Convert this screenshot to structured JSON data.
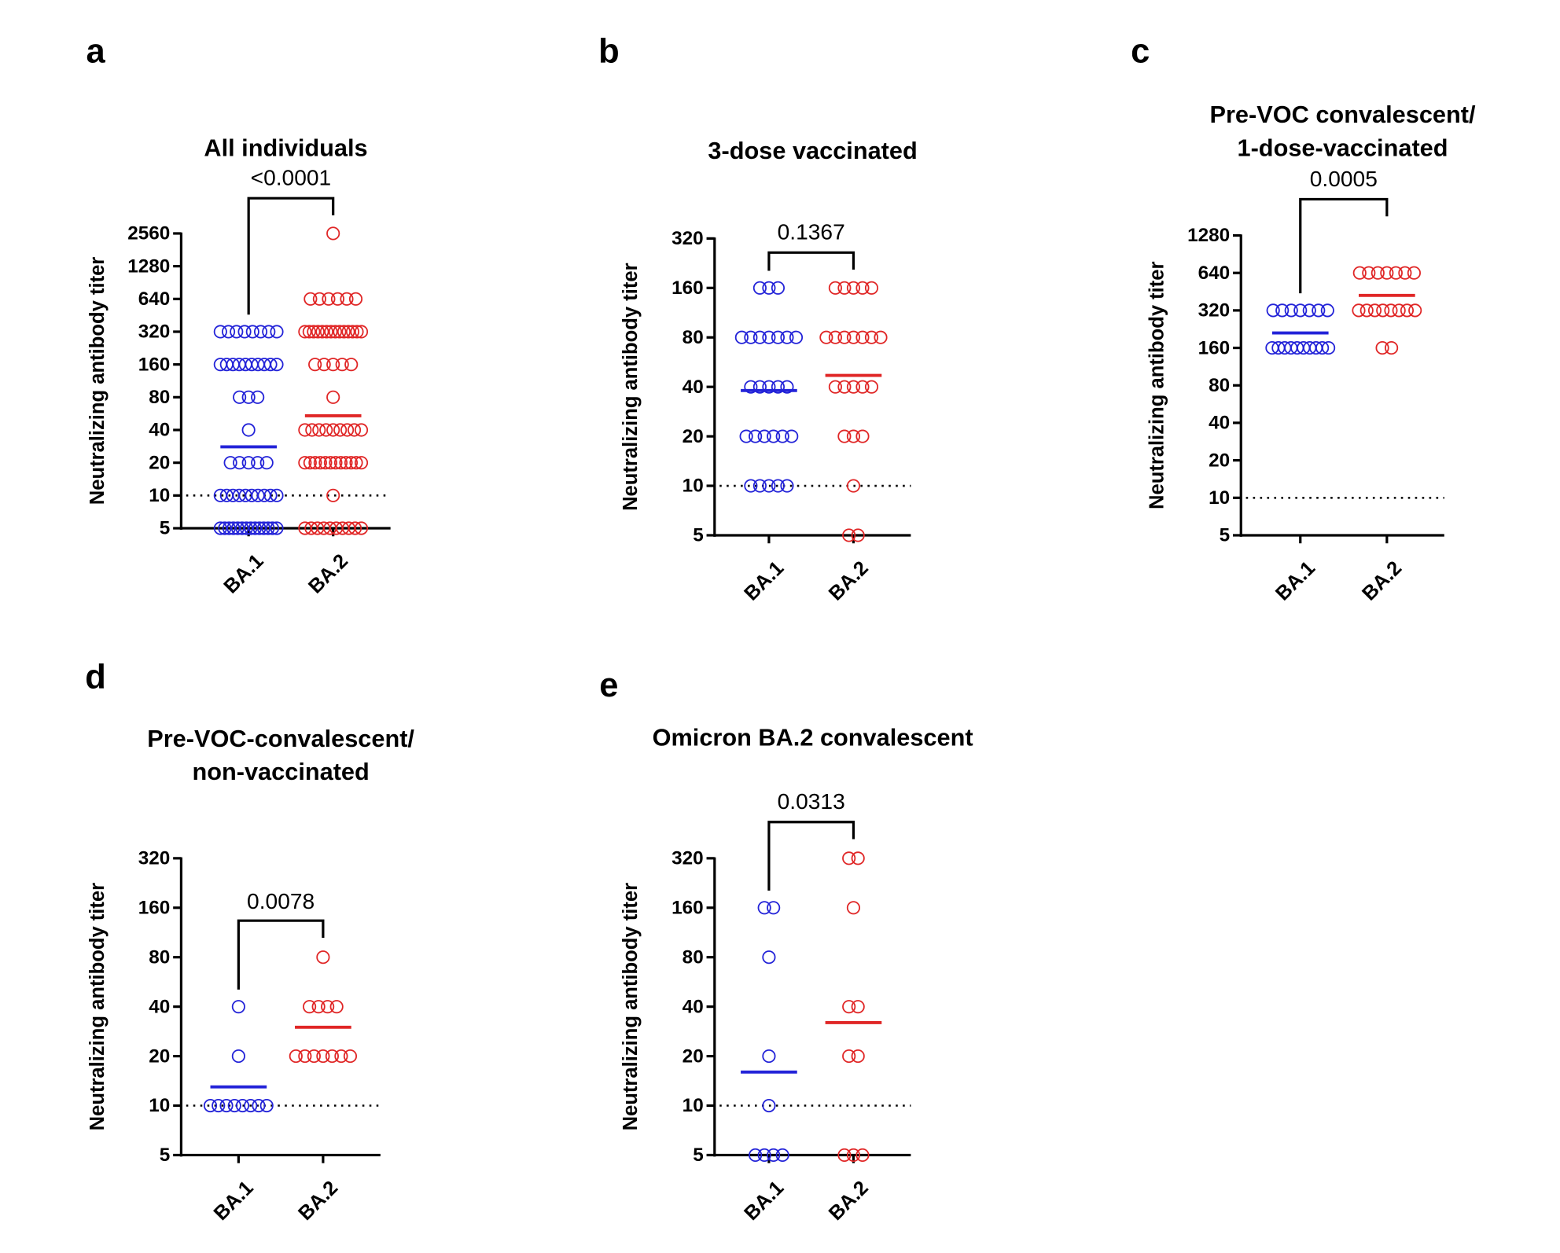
{
  "chart_data": [
    {
      "type": "strip",
      "letter": "a",
      "title": [
        "All individuals"
      ],
      "annotation": "<0.0001",
      "ylabel": "Neutralizing antibody titer",
      "categories": [
        "BA.1",
        "BA.2"
      ],
      "log_scale": true,
      "ylim": [
        5,
        2560
      ],
      "yticks": [
        5,
        10,
        20,
        40,
        80,
        160,
        320,
        640,
        1280,
        2560
      ],
      "reference_line": 10,
      "groups": [
        {
          "color": "#2323d8",
          "mean": 28,
          "values": [
            320,
            320,
            320,
            320,
            320,
            320,
            320,
            320,
            160,
            160,
            160,
            160,
            160,
            160,
            160,
            160,
            160,
            160,
            80,
            80,
            80,
            40,
            20,
            20,
            20,
            20,
            20,
            10,
            10,
            10,
            10,
            10,
            10,
            10,
            10,
            10,
            10,
            5,
            5,
            5,
            5,
            5,
            5,
            5,
            5,
            5,
            5,
            5,
            5,
            5,
            5
          ]
        },
        {
          "color": "#e02626",
          "mean": 54,
          "values": [
            2560,
            640,
            640,
            640,
            640,
            640,
            640,
            320,
            320,
            320,
            320,
            320,
            320,
            320,
            320,
            320,
            320,
            320,
            320,
            320,
            320,
            160,
            160,
            160,
            160,
            160,
            80,
            40,
            40,
            40,
            40,
            40,
            40,
            40,
            40,
            40,
            20,
            20,
            20,
            20,
            20,
            20,
            20,
            20,
            20,
            20,
            20,
            20,
            10,
            5,
            5,
            5,
            5,
            5,
            5,
            5,
            5,
            5,
            5
          ]
        }
      ]
    },
    {
      "type": "strip",
      "letter": "b",
      "title": [
        "3-dose vaccinated"
      ],
      "annotation": "0.1367",
      "ylabel": "Neutralizing antibody titer",
      "categories": [
        "BA.1",
        "BA.2"
      ],
      "log_scale": true,
      "ylim": [
        5,
        320
      ],
      "yticks": [
        5,
        10,
        20,
        40,
        80,
        160,
        320
      ],
      "reference_line": 10,
      "groups": [
        {
          "color": "#2323d8",
          "mean": 38,
          "values": [
            160,
            160,
            160,
            80,
            80,
            80,
            80,
            80,
            80,
            80,
            40,
            40,
            40,
            40,
            40,
            20,
            20,
            20,
            20,
            20,
            20,
            10,
            10,
            10,
            10,
            10
          ]
        },
        {
          "color": "#e02626",
          "mean": 47,
          "values": [
            160,
            160,
            160,
            160,
            160,
            80,
            80,
            80,
            80,
            80,
            80,
            80,
            40,
            40,
            40,
            40,
            40,
            20,
            20,
            20,
            10,
            5,
            5
          ]
        }
      ]
    },
    {
      "type": "strip",
      "letter": "c",
      "title": [
        "Pre-VOC convalescent/",
        "1-dose-vaccinated"
      ],
      "annotation": "0.0005",
      "ylabel": "Neutralizing antibody titer",
      "categories": [
        "BA.1",
        "BA.2"
      ],
      "log_scale": true,
      "ylim": [
        5,
        1280
      ],
      "yticks": [
        5,
        10,
        20,
        40,
        80,
        160,
        320,
        640,
        1280
      ],
      "reference_line": 10,
      "groups": [
        {
          "color": "#2323d8",
          "mean": 211,
          "values": [
            320,
            320,
            320,
            320,
            320,
            320,
            320,
            160,
            160,
            160,
            160,
            160,
            160,
            160,
            160,
            160,
            160
          ]
        },
        {
          "color": "#e02626",
          "mean": 422,
          "values": [
            640,
            640,
            640,
            640,
            640,
            640,
            640,
            320,
            320,
            320,
            320,
            320,
            320,
            320,
            320,
            160,
            160
          ]
        }
      ]
    },
    {
      "type": "strip",
      "letter": "d",
      "title": [
        "Pre-VOC-convalescent/",
        "non-vaccinated"
      ],
      "annotation": "0.0078",
      "ylabel": "Neutralizing antibody titer",
      "categories": [
        "BA.1",
        "BA.2"
      ],
      "log_scale": true,
      "ylim": [
        5,
        320
      ],
      "yticks": [
        5,
        10,
        20,
        40,
        80,
        160,
        320
      ],
      "reference_line": 10,
      "groups": [
        {
          "color": "#2323d8",
          "mean": 13,
          "values": [
            40,
            20,
            10,
            10,
            10,
            10,
            10,
            10,
            10,
            10
          ]
        },
        {
          "color": "#e02626",
          "mean": 30,
          "values": [
            80,
            40,
            40,
            40,
            40,
            20,
            20,
            20,
            20,
            20,
            20,
            20
          ]
        }
      ]
    },
    {
      "type": "strip",
      "letter": "e",
      "title": [
        "Omicron BA.2 convalescent"
      ],
      "annotation": "0.0313",
      "ylabel": "Neutralizing antibody titer",
      "categories": [
        "BA.1",
        "BA.2"
      ],
      "log_scale": true,
      "ylim": [
        5,
        320
      ],
      "yticks": [
        5,
        10,
        20,
        40,
        80,
        160,
        320
      ],
      "reference_line": 10,
      "groups": [
        {
          "color": "#2323d8",
          "mean": 16,
          "values": [
            160,
            160,
            80,
            20,
            10,
            5,
            5,
            5,
            5
          ]
        },
        {
          "color": "#e02626",
          "mean": 32,
          "values": [
            320,
            320,
            160,
            40,
            40,
            20,
            20,
            5,
            5,
            5
          ]
        }
      ]
    }
  ]
}
